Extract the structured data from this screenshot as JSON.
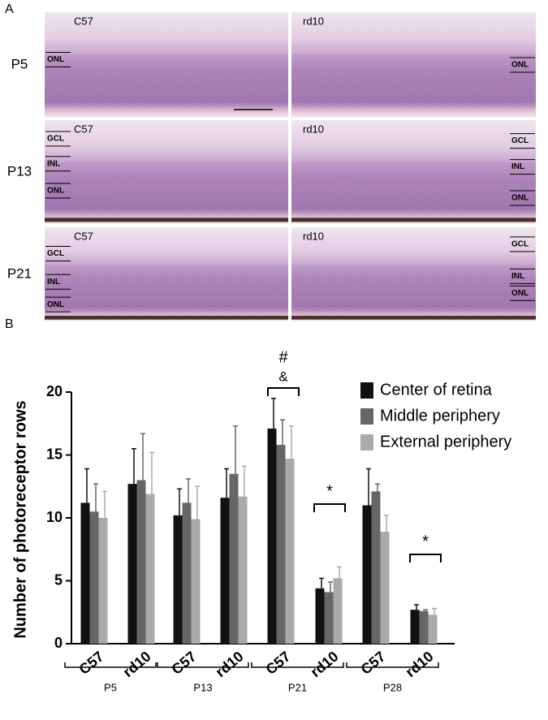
{
  "panel_a": {
    "label": "A",
    "rows": [
      {
        "label": "P5",
        "left": {
          "label": "C57",
          "layers": [
            "ONL"
          ]
        },
        "right": {
          "label": "rd10",
          "layers": [
            "ONL"
          ]
        }
      },
      {
        "label": "P13",
        "left": {
          "label": "C57",
          "layers": [
            "GCL",
            "INL",
            "ONL"
          ]
        },
        "right": {
          "label": "rd10",
          "layers": [
            "GCL",
            "INL",
            "ONL"
          ]
        }
      },
      {
        "label": "P21",
        "left": {
          "label": "C57",
          "layers": [
            "GCL",
            "INL",
            "ONL"
          ]
        },
        "right": {
          "label": "rd10",
          "layers": [
            "GCL",
            "INL",
            "ONL"
          ]
        }
      }
    ]
  },
  "chart_data": {
    "type": "bar",
    "panel_label": "B",
    "ylabel": "Number of photoreceptor rows",
    "categories": [
      "C57",
      "rd10",
      "C57",
      "rd10",
      "C57",
      "rd10",
      "C57",
      "rd10"
    ],
    "groups": [
      "P5",
      "P13",
      "P21",
      "P28"
    ],
    "series": [
      {
        "name": "Center of retina",
        "color": "#111111",
        "values": [
          11.2,
          12.7,
          10.2,
          11.6,
          17.1,
          4.4,
          11.0,
          2.7
        ],
        "errors": [
          2.7,
          2.8,
          2.1,
          2.3,
          2.4,
          0.8,
          2.9,
          0.4
        ]
      },
      {
        "name": "Middle periphery",
        "color": "#666666",
        "values": [
          10.5,
          13.0,
          11.2,
          13.5,
          15.8,
          4.1,
          12.1,
          2.6
        ],
        "errors": [
          2.2,
          3.7,
          1.9,
          3.8,
          2.0,
          0.8,
          0.6,
          0.1
        ]
      },
      {
        "name": "External periphery",
        "color": "#aaaaaa",
        "values": [
          10.0,
          11.9,
          9.9,
          11.7,
          14.7,
          5.2,
          8.9,
          2.3
        ],
        "errors": [
          2.1,
          3.3,
          2.6,
          2.4,
          2.6,
          0.9,
          1.3,
          0.5
        ]
      }
    ],
    "annotations": [
      "#",
      "&",
      "*",
      "*"
    ],
    "ylim": [
      0,
      20
    ],
    "yticks": [
      0,
      5,
      10,
      15,
      20
    ],
    "legend": "top-right"
  }
}
